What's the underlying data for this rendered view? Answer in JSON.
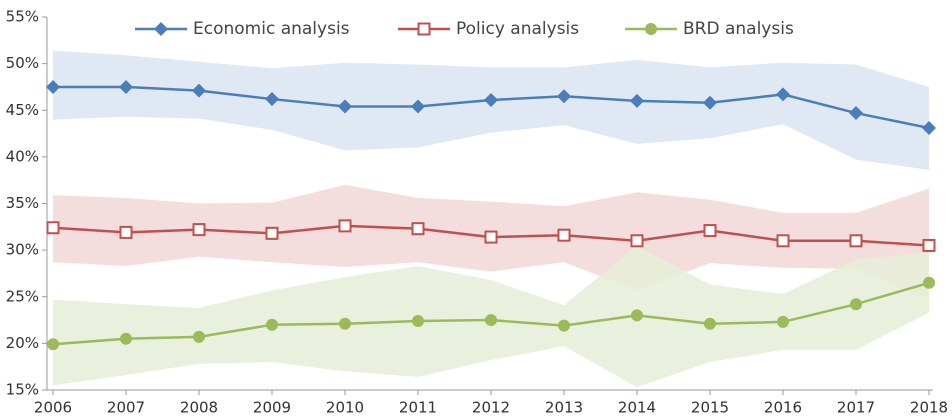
{
  "chart_data": {
    "type": "line",
    "categories": [
      "2006",
      "2007",
      "2008",
      "2009",
      "2010",
      "2011",
      "2012",
      "2013",
      "2014",
      "2015",
      "2016",
      "2017",
      "2018"
    ],
    "series": [
      {
        "name": "Economic analysis",
        "color": "#4a7ebb",
        "band_color": "#dbe5f1",
        "marker": "diamond",
        "values": [
          47.5,
          47.5,
          47.1,
          46.2,
          45.4,
          45.4,
          46.1,
          46.5,
          46.0,
          45.8,
          46.7,
          44.7,
          43.1
        ],
        "upper": [
          51.4,
          50.9,
          50.2,
          49.5,
          50.1,
          49.9,
          49.6,
          49.6,
          50.4,
          49.6,
          50.1,
          49.9,
          47.5
        ],
        "lower": [
          44.0,
          44.3,
          44.1,
          42.9,
          40.7,
          41.0,
          42.6,
          43.4,
          41.4,
          42.0,
          43.5,
          39.7,
          38.6
        ]
      },
      {
        "name": "Policy analysis",
        "color": "#c0504d",
        "band_color": "#f2d7d7",
        "marker": "square",
        "values": [
          32.4,
          31.9,
          32.2,
          31.8,
          32.6,
          32.3,
          31.4,
          31.6,
          31.0,
          32.1,
          31.0,
          31.0,
          30.5
        ],
        "upper": [
          35.9,
          35.6,
          35.0,
          35.1,
          37.0,
          35.6,
          35.2,
          34.7,
          36.2,
          35.4,
          34.0,
          34.0,
          36.6
        ],
        "lower": [
          28.7,
          28.3,
          29.3,
          28.7,
          28.2,
          28.7,
          27.7,
          28.7,
          25.7,
          28.6,
          28.1,
          28.0,
          24.7
        ]
      },
      {
        "name": "BRD analysis",
        "color": "#9bbb59",
        "band_color": "#e5eed8",
        "marker": "circle",
        "values": [
          19.9,
          20.5,
          20.7,
          22.0,
          22.1,
          22.4,
          22.5,
          21.9,
          23.0,
          22.1,
          22.3,
          24.2,
          26.5
        ],
        "upper": [
          24.7,
          24.2,
          23.8,
          25.7,
          27.1,
          28.3,
          26.8,
          24.1,
          30.5,
          26.3,
          25.3,
          29.0,
          29.7
        ],
        "lower": [
          15.5,
          16.6,
          17.8,
          18.0,
          17.0,
          16.4,
          18.2,
          19.7,
          15.3,
          18.0,
          19.3,
          19.3,
          23.3
        ]
      }
    ],
    "ylim": [
      15,
      55
    ],
    "yticks": [
      {
        "value": 15,
        "label": "15%"
      },
      {
        "value": 20,
        "label": "20%"
      },
      {
        "value": 25,
        "label": "25%"
      },
      {
        "value": 30,
        "label": "30%"
      },
      {
        "value": 35,
        "label": "35%"
      },
      {
        "value": 40,
        "label": "40%"
      },
      {
        "value": 45,
        "label": "45%"
      },
      {
        "value": 50,
        "label": "50%"
      },
      {
        "value": 55,
        "label": "55%"
      }
    ],
    "legend": "top"
  }
}
